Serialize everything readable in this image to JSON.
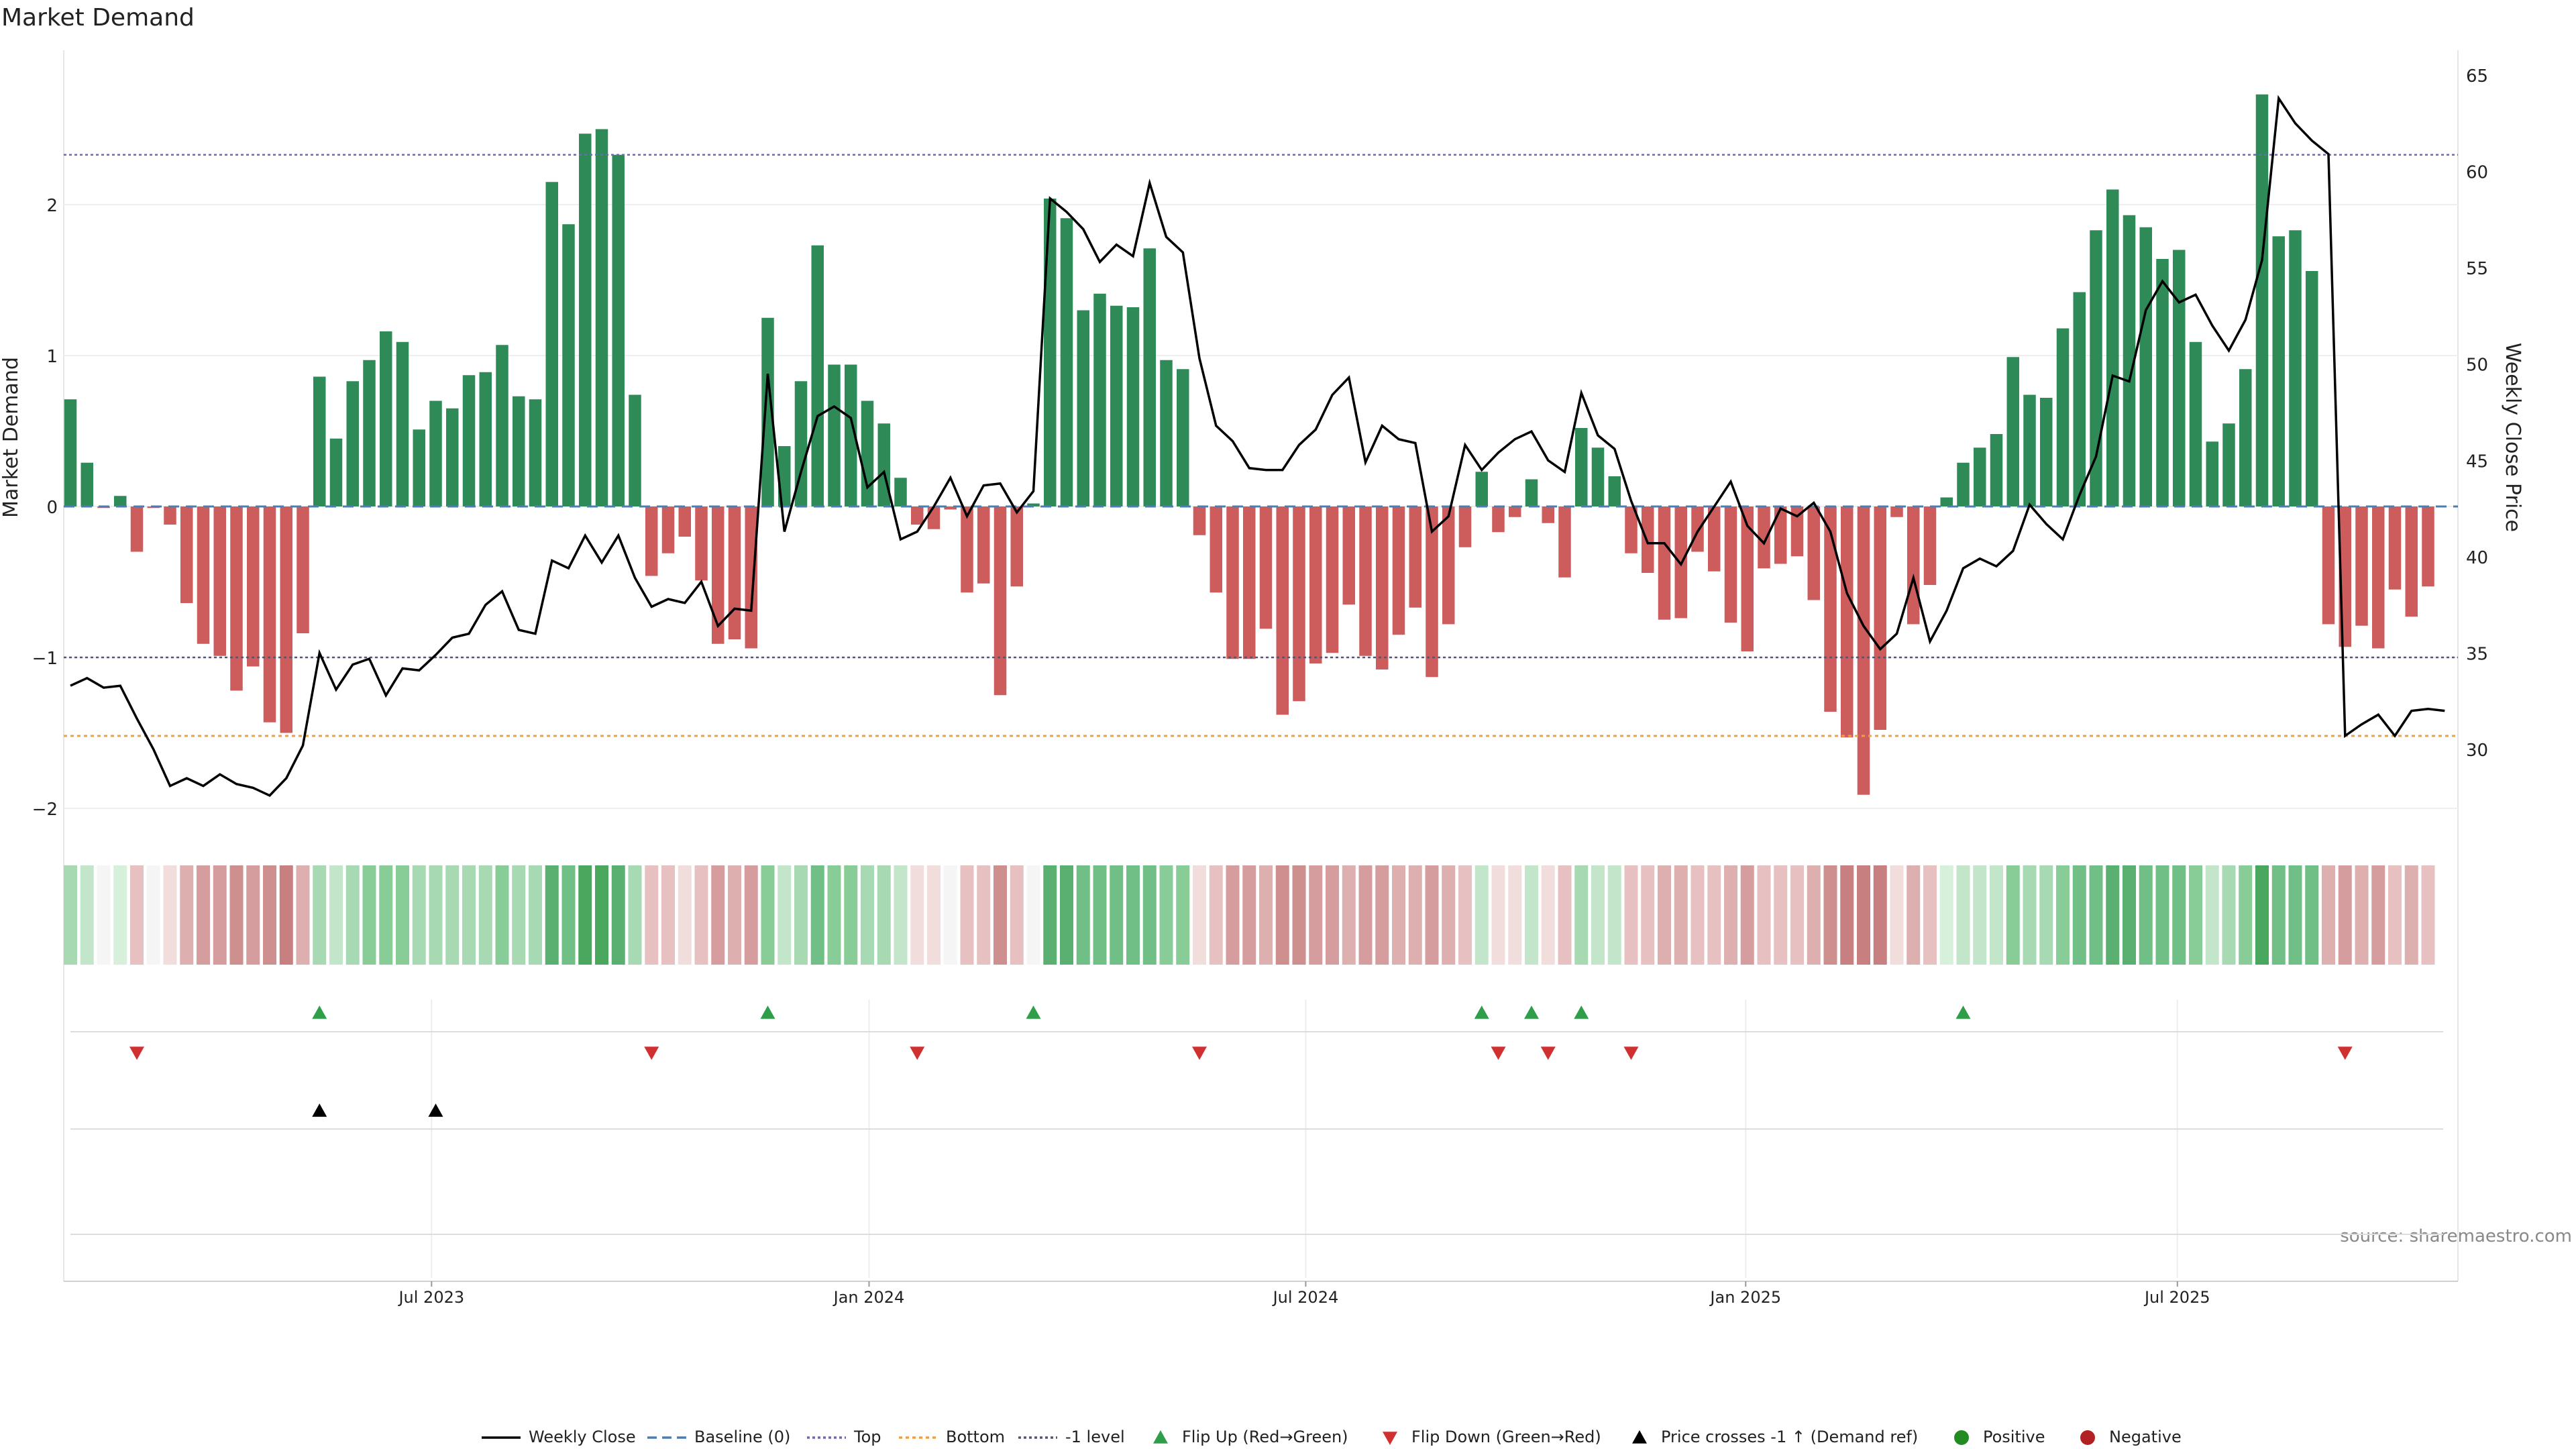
{
  "chart_data": {
    "type": "bar",
    "title": "Market Demand",
    "ylabel": "Market Demand",
    "y2label": "Weekly Close Price",
    "source": "source: sharemaestro.com",
    "ylim": [
      -2.0,
      3.0
    ],
    "y2lim": [
      26.8,
      66.2
    ],
    "yticks": [
      "−2",
      "−1",
      "0",
      "1",
      "2"
    ],
    "y2ticks": [
      "30",
      "35",
      "40",
      "45",
      "50",
      "55",
      "60",
      "65"
    ],
    "xticks": [
      "Jul 2023",
      "Jan 2024",
      "Jul 2024",
      "Jan 2025",
      "Jul 2025"
    ],
    "levels": {
      "top": 2.33,
      "bottom": -1.52,
      "minus_one": -1.0,
      "baseline": 0
    },
    "demand": [
      0.71,
      0.29,
      -0.01,
      0.07,
      -0.3,
      -0.01,
      -0.12,
      -0.64,
      -0.91,
      -0.99,
      -1.22,
      -1.06,
      -1.43,
      -1.5,
      -0.84,
      0.86,
      0.45,
      0.83,
      0.97,
      1.16,
      1.09,
      0.51,
      0.7,
      0.65,
      0.87,
      0.89,
      1.07,
      0.73,
      0.71,
      2.15,
      1.87,
      2.47,
      2.5,
      2.33,
      0.74,
      -0.46,
      -0.31,
      -0.2,
      -0.49,
      -0.91,
      -0.88,
      -0.94,
      1.25,
      0.4,
      0.83,
      1.73,
      0.94,
      0.94,
      0.7,
      0.55,
      0.19,
      -0.12,
      -0.15,
      -0.02,
      -0.57,
      -0.51,
      -1.25,
      -0.53,
      0.02,
      2.04,
      1.91,
      1.3,
      1.41,
      1.33,
      1.32,
      1.71,
      0.97,
      0.91,
      -0.19,
      -0.57,
      -1.01,
      -1.01,
      -0.81,
      -1.38,
      -1.29,
      -1.04,
      -0.97,
      -0.65,
      -0.99,
      -1.08,
      -0.85,
      -0.67,
      -1.13,
      -0.78,
      -0.27,
      0.23,
      -0.17,
      -0.07,
      0.18,
      -0.11,
      -0.47,
      0.52,
      0.39,
      0.2,
      -0.31,
      -0.44,
      -0.75,
      -0.74,
      -0.3,
      -0.43,
      -0.77,
      -0.96,
      -0.41,
      -0.38,
      -0.33,
      -0.62,
      -1.36,
      -1.53,
      -1.91,
      -1.48,
      -0.07,
      -0.78,
      -0.52,
      0.06,
      0.29,
      0.39,
      0.48,
      0.99,
      0.74,
      0.72,
      1.18,
      1.42,
      1.83,
      2.1,
      1.93,
      1.85,
      1.64,
      1.7,
      1.09,
      0.43,
      0.55,
      0.91,
      2.73,
      1.79,
      1.83,
      1.56,
      -0.78,
      -0.93,
      -0.79,
      -0.94,
      -0.55,
      -0.73,
      -0.53
    ],
    "weekly_close": [
      33.3,
      33.7,
      33.2,
      33.3,
      31.6,
      30.0,
      28.1,
      28.5,
      28.1,
      28.7,
      28.2,
      28.0,
      27.6,
      28.5,
      30.2,
      35.0,
      33.1,
      34.4,
      34.7,
      32.8,
      34.2,
      34.1,
      34.9,
      35.8,
      36.0,
      37.5,
      38.2,
      36.2,
      36.0,
      39.8,
      39.4,
      41.1,
      39.7,
      41.1,
      38.9,
      37.4,
      37.8,
      37.6,
      38.7,
      36.4,
      37.3,
      37.2,
      49.5,
      41.3,
      44.4,
      47.3,
      47.8,
      47.2,
      43.6,
      44.4,
      40.9,
      41.3,
      42.6,
      44.1,
      42.1,
      43.7,
      43.8,
      42.3,
      43.4,
      58.6,
      57.9,
      57.0,
      55.3,
      56.2,
      55.6,
      59.4,
      56.6,
      55.8,
      50.3,
      46.8,
      46.0,
      44.6,
      44.5,
      44.5,
      45.8,
      46.6,
      48.4,
      49.3,
      44.9,
      46.8,
      46.1,
      45.9,
      41.3,
      42.1,
      45.8,
      44.5,
      45.4,
      46.1,
      46.5,
      45.0,
      44.4,
      48.5,
      46.3,
      45.6,
      42.9,
      40.7,
      40.7,
      39.6,
      41.3,
      42.6,
      43.9,
      41.6,
      40.7,
      42.5,
      42.1,
      42.8,
      41.3,
      38.1,
      36.4,
      35.2,
      36.0,
      38.9,
      35.6,
      37.2,
      39.4,
      39.9,
      39.5,
      40.3,
      42.7,
      41.7,
      40.9,
      43.2,
      45.2,
      49.4,
      49.1,
      52.8,
      54.3,
      53.2,
      53.6,
      52.0,
      50.7,
      52.3,
      55.4,
      63.8,
      62.5,
      61.6,
      60.9,
      30.7,
      31.3,
      31.8,
      30.7,
      32.0,
      32.1,
      32.0
    ],
    "heat_shades": [
      "#f5f5f5",
      "#d7f0dc",
      "#c3e6cb",
      "#a7d9b3",
      "#88cc98",
      "#6fbf86",
      "#5ab070",
      "#49a85e",
      "#f2dddd",
      "#e7c1c1",
      "#deafaf",
      "#d59d9d",
      "#ce8f8f",
      "#c77f7f"
    ],
    "flip_up_weeks": [
      15,
      42,
      58,
      85,
      88,
      91,
      114
    ],
    "flip_down_weeks": [
      4,
      35,
      51,
      68,
      86,
      89,
      94,
      137
    ],
    "cross_up_weeks": [
      15,
      22
    ],
    "legend": [
      "Weekly Close",
      "Baseline (0)",
      "Top",
      "Bottom",
      "-1 level",
      "Flip Up (Red→Green)",
      "Flip Down (Green→Red)",
      "Price crosses -1 ↑ (Demand ref)",
      "Positive",
      "Negative"
    ],
    "colors": {
      "positive_bar": "#2e8b57",
      "negative_bar": "#cd5c5c",
      "price": "#000000",
      "top": "#6b6bb5",
      "bottom": "#f0a040",
      "minus_one": "#555577",
      "baseline": "#4a7fb5",
      "flip_up": "#2e9e48",
      "flip_down": "#d03030",
      "cross": "#000000",
      "positive_dot": "#228b22",
      "negative_dot": "#b22222"
    }
  }
}
